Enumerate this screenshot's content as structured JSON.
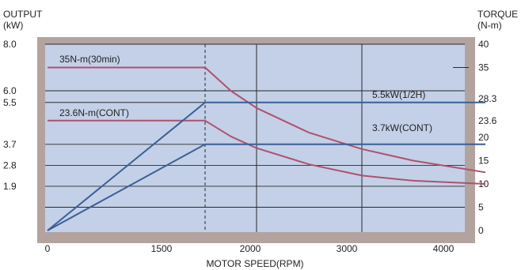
{
  "chart_data": {
    "type": "line",
    "left_axis": {
      "title_line1": "OUTPUT",
      "title_line2": "(kW)",
      "ticks": [
        "8.0",
        "6.0",
        "5.5",
        "3.7",
        "2.8",
        "1.9"
      ],
      "tick_values": [
        8.0,
        6.0,
        5.5,
        3.7,
        2.8,
        1.9
      ]
    },
    "right_axis": {
      "title_line1": "TORQUE",
      "title_line2": "(N-m)",
      "ticks": [
        "40",
        "35",
        "28.3",
        "23.6",
        "20",
        "15",
        "10",
        "5",
        "0"
      ],
      "tick_values": [
        40,
        35,
        28.3,
        23.6,
        20,
        15,
        10,
        5,
        0
      ]
    },
    "x_axis": {
      "title": "MOTOR SPEED(RPM)",
      "ticks": [
        "0",
        "1500",
        "2000",
        "3000",
        "4000"
      ]
    },
    "annotations": {
      "torque_30min": "35N-m(30min)",
      "torque_cont": "23.6N-m(CONT)",
      "power_half_hour": "5.5kW(1/2H)",
      "power_cont": "3.7kW(CONT)"
    },
    "series": [
      {
        "name": "35N-m(30min)",
        "kind": "torque",
        "points": [
          [
            0,
            35
          ],
          [
            1500,
            35
          ],
          [
            1750,
            30
          ],
          [
            2000,
            26.3
          ],
          [
            2500,
            21
          ],
          [
            3000,
            17.5
          ],
          [
            3500,
            15
          ],
          [
            4200,
            12.5
          ]
        ]
      },
      {
        "name": "23.6N-m(CONT)",
        "kind": "torque",
        "points": [
          [
            0,
            23.6
          ],
          [
            1500,
            23.6
          ],
          [
            1750,
            20.2
          ],
          [
            2000,
            17.7
          ],
          [
            2500,
            14.2
          ],
          [
            3000,
            11.8
          ],
          [
            3500,
            10.7
          ],
          [
            4200,
            10
          ]
        ]
      },
      {
        "name": "5.5kW(1/2H)",
        "kind": "power",
        "points": [
          [
            0,
            0
          ],
          [
            1500,
            5.5
          ],
          [
            4200,
            5.5
          ]
        ]
      },
      {
        "name": "3.7kW(CONT)",
        "kind": "power",
        "points": [
          [
            0,
            0
          ],
          [
            1500,
            3.7
          ],
          [
            4200,
            3.7
          ]
        ]
      }
    ],
    "colors": {
      "frame": "#b3a39f",
      "plot_bg": "#c3d0e8",
      "torque_line": "#b0506e",
      "power_line": "#3a5f95",
      "grid": "#2a2a2a"
    }
  }
}
